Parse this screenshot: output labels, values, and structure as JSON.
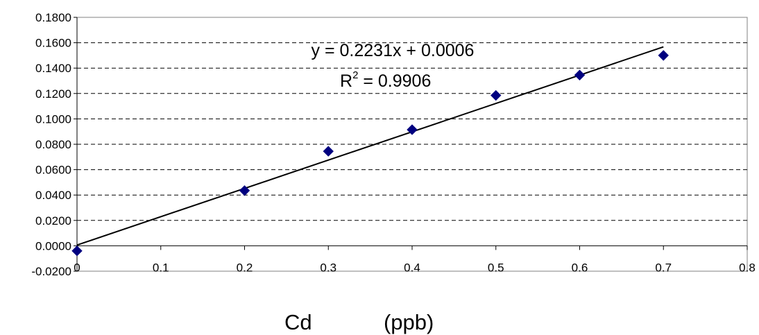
{
  "chart_data": {
    "type": "scatter",
    "title": "",
    "xlabel": "Cd            (ppb)",
    "ylabel": "",
    "xlim": [
      0,
      0.8
    ],
    "ylim": [
      -0.02,
      0.18
    ],
    "x_ticks": [
      "0",
      "0.1",
      "0.2",
      "0.3",
      "0.4",
      "0.5",
      "0.6",
      "0.7",
      "0.8"
    ],
    "y_ticks": [
      "-0.0200",
      "0.0000",
      "0.0200",
      "0.0400",
      "0.0600",
      "0.0800",
      "0.1000",
      "0.1200",
      "0.1400",
      "0.1600",
      "0.1800"
    ],
    "grid": "horizontal-dashed",
    "series": [
      {
        "marker": "diamond",
        "color": "#000080",
        "x": [
          0,
          0.2,
          0.3,
          0.4,
          0.5,
          0.6,
          0.7
        ],
        "y": [
          -0.004,
          0.0435,
          0.0745,
          0.0915,
          0.1185,
          0.1345,
          0.15
        ]
      }
    ],
    "trendline": {
      "type": "linear",
      "slope": 0.2231,
      "intercept": 0.0006,
      "x_range": [
        0,
        0.7
      ],
      "color": "#000000"
    },
    "annotations": {
      "equation": "y = 0.2231x + 0.0006",
      "r2_label": "R",
      "r2_sup": "2",
      "r2_value": " = 0.9906"
    }
  }
}
